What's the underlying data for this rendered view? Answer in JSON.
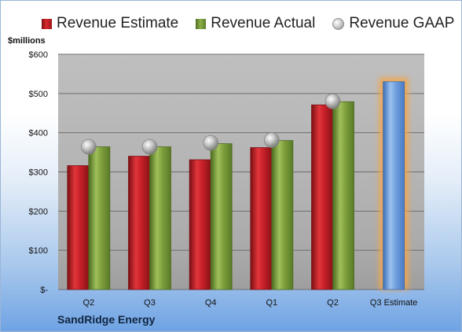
{
  "legend": {
    "estimate": "Revenue Estimate",
    "actual": "Revenue Actual",
    "gaap": "Revenue GAAP"
  },
  "y_unit_label": "$millions",
  "company": "SandRidge Energy",
  "chart_data": {
    "type": "bar",
    "categories": [
      "Q2",
      "Q3",
      "Q4",
      "Q1",
      "Q2",
      "Q3 Estimate"
    ],
    "series": [
      {
        "name": "Revenue Estimate",
        "values": [
          316,
          340,
          331,
          362,
          471,
          null
        ],
        "color": "#c8202a"
      },
      {
        "name": "Revenue Actual",
        "values": [
          364,
          364,
          372,
          380,
          479,
          null
        ],
        "color": "#7e9f3c"
      },
      {
        "name": "Revenue GAAP",
        "values": [
          364,
          364,
          374,
          381,
          480,
          null
        ],
        "color": "#b8b8b8"
      },
      {
        "name": "Q3 Estimate",
        "values": [
          null,
          null,
          null,
          null,
          null,
          530
        ],
        "color": "#6f9fde"
      }
    ],
    "ylim": [
      0,
      600
    ],
    "yticks": [
      0,
      100,
      200,
      300,
      400,
      500,
      600
    ],
    "ytick_labels": [
      "$-",
      "$100",
      "$200",
      "$300",
      "$400",
      "$500",
      "$600"
    ],
    "grid": true,
    "legend_position": "top"
  }
}
